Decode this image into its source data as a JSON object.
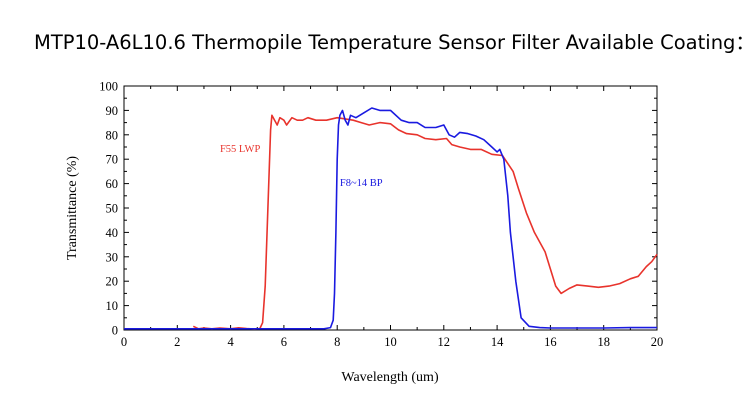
{
  "page": {
    "title": "MTP10-A6L10.6 Thermopile Temperature Sensor Filter Available Coating："
  },
  "chart_data": {
    "type": "line",
    "title": "",
    "xlabel": "Wavelength (um)",
    "ylabel": "Transmittance (%)",
    "xlim": [
      0,
      20
    ],
    "ylim": [
      0,
      100
    ],
    "xticks": [
      0,
      2,
      4,
      6,
      8,
      10,
      12,
      14,
      16,
      18,
      20
    ],
    "yticks": [
      0,
      10,
      20,
      30,
      40,
      50,
      60,
      70,
      80,
      90,
      100
    ],
    "grid": false,
    "legend": "none",
    "series": [
      {
        "name": "F55 LWP",
        "color": "#e8332c",
        "label_at": [
          3.6,
          73
        ],
        "points": [
          [
            2.6,
            1.5
          ],
          [
            2.8,
            0.5
          ],
          [
            3.0,
            0.8
          ],
          [
            3.3,
            0.5
          ],
          [
            3.6,
            0.8
          ],
          [
            4.0,
            0.5
          ],
          [
            4.3,
            0.9
          ],
          [
            4.6,
            0.6
          ],
          [
            4.9,
            0.4
          ],
          [
            5.1,
            0.6
          ],
          [
            5.2,
            3
          ],
          [
            5.3,
            18
          ],
          [
            5.4,
            50
          ],
          [
            5.5,
            82
          ],
          [
            5.55,
            88
          ],
          [
            5.65,
            86
          ],
          [
            5.75,
            84
          ],
          [
            5.85,
            87
          ],
          [
            6.0,
            86
          ],
          [
            6.1,
            84
          ],
          [
            6.3,
            87
          ],
          [
            6.5,
            86
          ],
          [
            6.7,
            86
          ],
          [
            6.9,
            87
          ],
          [
            7.2,
            86
          ],
          [
            7.6,
            86
          ],
          [
            8.0,
            87
          ],
          [
            8.3,
            86.5
          ],
          [
            8.6,
            86
          ],
          [
            8.9,
            85
          ],
          [
            9.2,
            84
          ],
          [
            9.6,
            85
          ],
          [
            10.0,
            84.5
          ],
          [
            10.3,
            82
          ],
          [
            10.6,
            80.5
          ],
          [
            11.0,
            80
          ],
          [
            11.3,
            78.5
          ],
          [
            11.7,
            78
          ],
          [
            12.1,
            78.5
          ],
          [
            12.3,
            76
          ],
          [
            12.6,
            75
          ],
          [
            13.0,
            74
          ],
          [
            13.4,
            74
          ],
          [
            13.8,
            72
          ],
          [
            14.2,
            71.5
          ],
          [
            14.6,
            65
          ],
          [
            14.8,
            58
          ],
          [
            15.1,
            48
          ],
          [
            15.4,
            40
          ],
          [
            15.8,
            32
          ],
          [
            16.0,
            25
          ],
          [
            16.2,
            18
          ],
          [
            16.4,
            15
          ],
          [
            16.7,
            17
          ],
          [
            17.0,
            18.5
          ],
          [
            17.4,
            18
          ],
          [
            17.8,
            17.5
          ],
          [
            18.2,
            18
          ],
          [
            18.6,
            19
          ],
          [
            19.0,
            21
          ],
          [
            19.3,
            22
          ],
          [
            19.6,
            26
          ],
          [
            19.8,
            28
          ],
          [
            20.0,
            31
          ]
        ]
      },
      {
        "name": "F8~14 BP",
        "color": "#1a1ae0",
        "label_at": [
          8.1,
          59
        ],
        "points": [
          [
            0,
            0.5
          ],
          [
            5.0,
            0.5
          ],
          [
            7.5,
            0.5
          ],
          [
            7.75,
            1
          ],
          [
            7.85,
            4
          ],
          [
            7.9,
            15
          ],
          [
            7.95,
            40
          ],
          [
            8.0,
            70
          ],
          [
            8.05,
            84
          ],
          [
            8.1,
            88
          ],
          [
            8.2,
            90
          ],
          [
            8.3,
            86
          ],
          [
            8.4,
            84
          ],
          [
            8.5,
            88
          ],
          [
            8.7,
            87
          ],
          [
            9.0,
            89
          ],
          [
            9.3,
            91
          ],
          [
            9.6,
            90
          ],
          [
            10.0,
            90
          ],
          [
            10.4,
            86
          ],
          [
            10.7,
            85
          ],
          [
            11.0,
            85
          ],
          [
            11.3,
            83
          ],
          [
            11.7,
            83
          ],
          [
            12.0,
            84
          ],
          [
            12.2,
            80
          ],
          [
            12.4,
            79
          ],
          [
            12.6,
            81
          ],
          [
            12.9,
            80.5
          ],
          [
            13.2,
            79.5
          ],
          [
            13.5,
            78
          ],
          [
            13.8,
            75
          ],
          [
            14.0,
            73
          ],
          [
            14.1,
            74
          ],
          [
            14.25,
            70
          ],
          [
            14.4,
            55
          ],
          [
            14.5,
            40
          ],
          [
            14.7,
            20
          ],
          [
            14.9,
            5
          ],
          [
            15.2,
            1.5
          ],
          [
            15.6,
            1
          ],
          [
            16.0,
            0.8
          ],
          [
            17.0,
            0.8
          ],
          [
            18.0,
            0.8
          ],
          [
            19.0,
            1
          ],
          [
            20.0,
            1
          ]
        ]
      }
    ]
  }
}
